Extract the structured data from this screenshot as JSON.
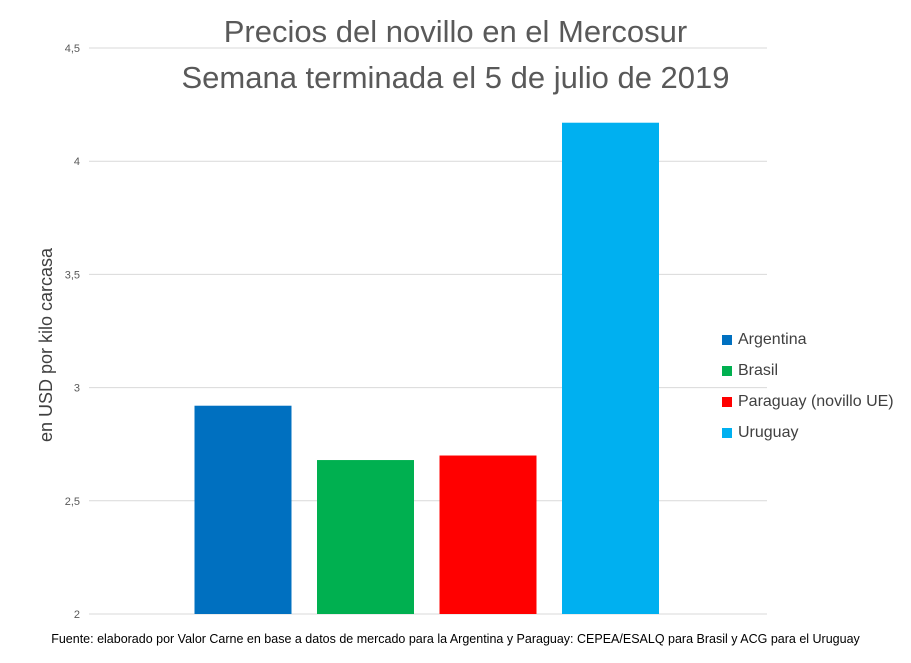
{
  "chart_data": {
    "type": "bar",
    "title": "Precios del novillo en el Mercosur",
    "subtitle": "Semana terminada el 5 de julio de 2019",
    "xlabel": "",
    "ylabel": "en USD por kilo carcasa",
    "ylim": [
      2,
      4.5
    ],
    "yticks": [
      "2",
      "2,5",
      "3",
      "3,5",
      "4",
      "4,5"
    ],
    "grid": true,
    "legend_position": "right",
    "categories": [
      "Argentina",
      "Brasil",
      "Paraguay (novillo UE)",
      "Uruguay"
    ],
    "values": [
      2.92,
      2.68,
      2.7,
      4.17
    ],
    "colors": [
      "#0070C0",
      "#00B050",
      "#FF0000",
      "#00B0F0"
    ],
    "source": "Fuente: elaborado por Valor Carne en base a datos de mercado para la Argentina y Paraguay: CEPEA/ESALQ para Brasil y ACG para el Uruguay"
  }
}
